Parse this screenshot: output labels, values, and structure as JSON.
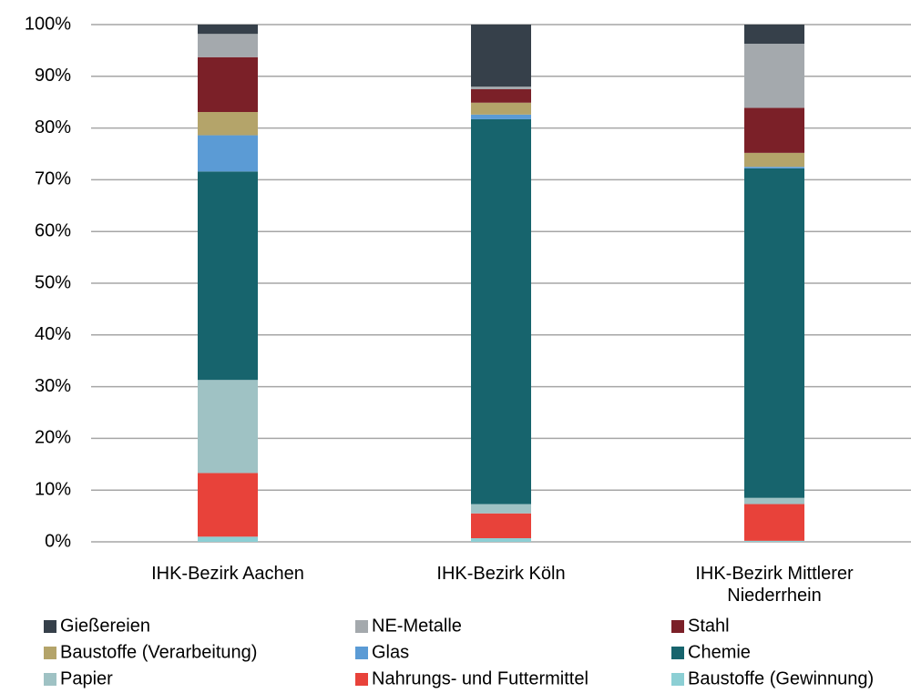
{
  "chart_data": {
    "type": "stacked_bar_100",
    "categories": [
      "IHK-Bezirk Aachen",
      "IHK-Bezirk Köln",
      "IHK-Bezirk Mittlerer Niederrhein"
    ],
    "series": [
      {
        "name": "Baustoffe (Gewinnung)",
        "color": "#8ccfd4",
        "values": [
          1,
          0.7,
          0.2
        ]
      },
      {
        "name": "Nahrungs- und Futtermittel",
        "color": "#e8423a",
        "values": [
          12.3,
          4.8,
          7.1
        ]
      },
      {
        "name": "Papier",
        "color": "#9fc2c4",
        "values": [
          18,
          1.8,
          1.2
        ]
      },
      {
        "name": "Chemie",
        "color": "#17646d",
        "values": [
          40.3,
          74.4,
          63.7
        ]
      },
      {
        "name": "Glas",
        "color": "#5b9bd5",
        "values": [
          7,
          0.9,
          0.3
        ]
      },
      {
        "name": "Baustoffe (Verarbeitung)",
        "color": "#b4a46a",
        "values": [
          4.5,
          2.3,
          2.7
        ]
      },
      {
        "name": "Stahl",
        "color": "#7b2028",
        "values": [
          10.6,
          2.6,
          8.7
        ]
      },
      {
        "name": "NE-Metalle",
        "color": "#a4a9ad",
        "values": [
          4.5,
          0.5,
          12.4
        ]
      },
      {
        "name": "Gießereien",
        "color": "#36404a",
        "values": [
          1.8,
          12,
          3.7
        ]
      }
    ],
    "ylim": [
      0,
      100
    ],
    "yticks": [
      {
        "value": 0,
        "label": "0%"
      },
      {
        "value": 10,
        "label": "10%"
      },
      {
        "value": 20,
        "label": "20%"
      },
      {
        "value": 30,
        "label": "30%"
      },
      {
        "value": 40,
        "label": "40%"
      },
      {
        "value": 50,
        "label": "50%"
      },
      {
        "value": 60,
        "label": "60%"
      },
      {
        "value": 70,
        "label": "70%"
      },
      {
        "value": 80,
        "label": "80%"
      },
      {
        "value": 90,
        "label": "90%"
      },
      {
        "value": 100,
        "label": "100%"
      }
    ],
    "grid": true
  }
}
